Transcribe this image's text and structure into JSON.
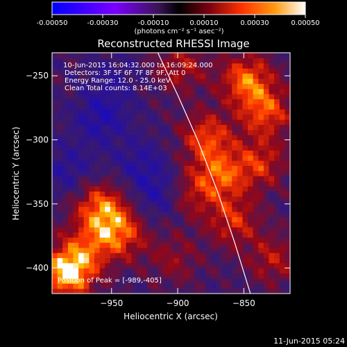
{
  "colorbar": {
    "ticks": [
      "-0.00050",
      "-0.00030",
      "-0.00010",
      "0.00010",
      "0.00030",
      "0.00050"
    ],
    "unit_text": "(photons cm⁻² s⁻¹ asec⁻²)",
    "colors": [
      "#0000ff",
      "#5a00ff",
      "#8800cc",
      "#552288",
      "#22112a",
      "#000000",
      "#330022",
      "#8a0000",
      "#e02000",
      "#ff7a00",
      "#ffd440",
      "#ffffff"
    ]
  },
  "title": "Reconstructed RHESSI Image",
  "info": {
    "time": "10-Jun-2015 16:04:32.000 to 16:09:24.000",
    "detectors": "Detectors: 3F 5F 6F 7F 8F 9F, Att 0",
    "energy": "Energy Range: 12.0 - 25.0 keV",
    "clean": "Clean    Total counts: 8.14E+03",
    "peak": "Position of Peak = [-989,-405]"
  },
  "footer_timestamp": "11-Jun-2015 05:24",
  "chart_data": {
    "type": "heatmap",
    "title": "Reconstructed RHESSI Image",
    "xlabel": "Heliocentric X (arcsec)",
    "ylabel": "Heliocentric Y (arcsec)",
    "xlim": [
      -995,
      -815
    ],
    "ylim": [
      -420,
      -232
    ],
    "xticks": [
      -950,
      -900,
      -850
    ],
    "yticks": [
      -400,
      -350,
      -300,
      -250
    ],
    "color_range": [
      -0.0005,
      0.0005
    ],
    "color_unit": "photons cm^-2 s^-1 asec^-2",
    "limb_line": [
      [
        -915,
        -232
      ],
      [
        -900,
        -265
      ],
      [
        -885,
        -300
      ],
      [
        -870,
        -340
      ],
      [
        -857,
        -380
      ],
      [
        -845,
        -420
      ]
    ],
    "peak_position": [
      -989,
      -405
    ],
    "bright_regions": [
      {
        "x": -985,
        "y": -405,
        "intensity": 0.0005
      },
      {
        "x": -960,
        "y": -355,
        "intensity": 0.00035
      },
      {
        "x": -945,
        "y": -375,
        "intensity": 0.0003
      },
      {
        "x": -970,
        "y": -385,
        "intensity": 0.0002
      },
      {
        "x": -850,
        "y": -255,
        "intensity": 0.00035
      },
      {
        "x": -835,
        "y": -280,
        "intensity": 0.0003
      },
      {
        "x": -880,
        "y": -300,
        "intensity": 0.0003
      },
      {
        "x": -870,
        "y": -330,
        "intensity": 0.0003
      },
      {
        "x": -840,
        "y": -320,
        "intensity": 0.00025
      },
      {
        "x": -860,
        "y": -365,
        "intensity": 0.00025
      },
      {
        "x": -830,
        "y": -395,
        "intensity": 0.0002
      },
      {
        "x": -900,
        "y": -245,
        "intensity": 0.0002
      },
      {
        "x": -895,
        "y": -345,
        "intensity": 0.0002
      },
      {
        "x": -905,
        "y": -395,
        "intensity": 0.00015
      }
    ],
    "dark_regions": [
      {
        "x": -960,
        "y": -285,
        "intensity": -0.0002
      },
      {
        "x": -930,
        "y": -320,
        "intensity": -0.00015
      },
      {
        "x": -915,
        "y": -345,
        "intensity": -0.0002
      },
      {
        "x": -985,
        "y": -325,
        "intensity": -0.00015
      },
      {
        "x": -950,
        "y": -255,
        "intensity": -0.0001
      }
    ]
  }
}
